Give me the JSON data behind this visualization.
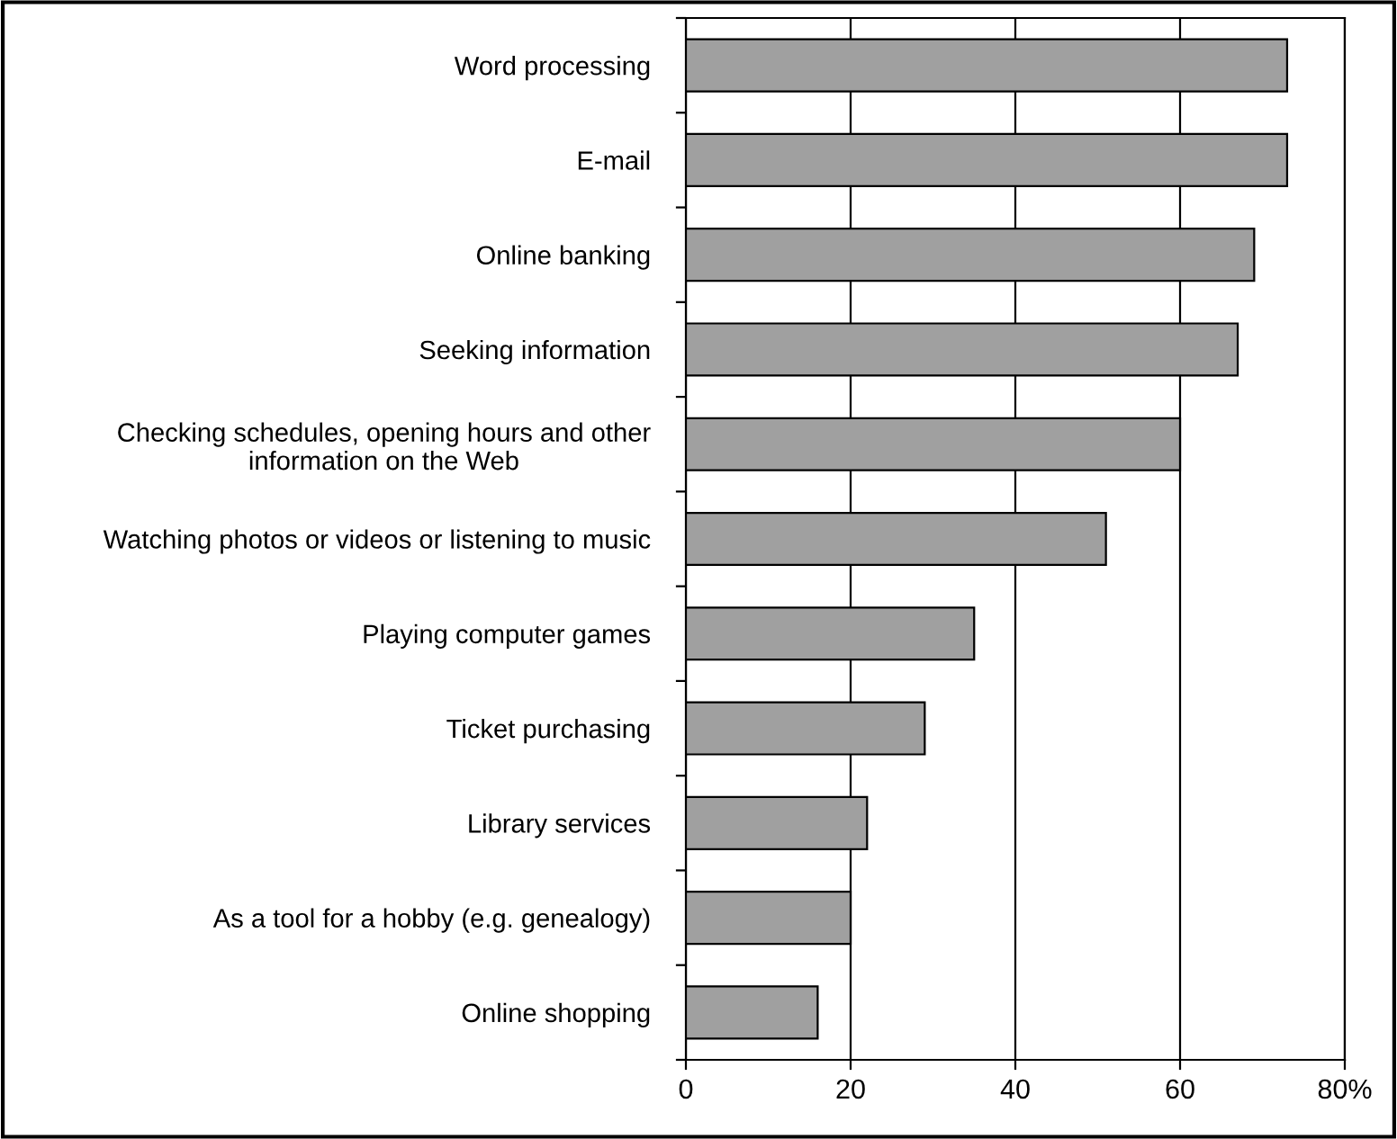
{
  "chart_data": {
    "type": "bar",
    "orientation": "horizontal",
    "categories": [
      "Word processing",
      "E-mail",
      "Online banking",
      "Seeking information",
      "Checking schedules, opening hours and other\ninformation on the Web",
      "Watching photos or videos or listening to music",
      "Playing computer games",
      "Ticket purchasing",
      "Library services",
      "As a tool for a hobby (e.g. genealogy)",
      "Online shopping"
    ],
    "values": [
      73,
      73,
      69,
      67,
      60,
      51,
      35,
      29,
      22,
      20,
      16
    ],
    "color": "#a0a0a0",
    "xlim": [
      0,
      80
    ],
    "xticks": [
      0,
      20,
      40,
      60,
      {
        "value": 80,
        "label": "80%"
      }
    ],
    "grid": "x",
    "legend": false
  }
}
